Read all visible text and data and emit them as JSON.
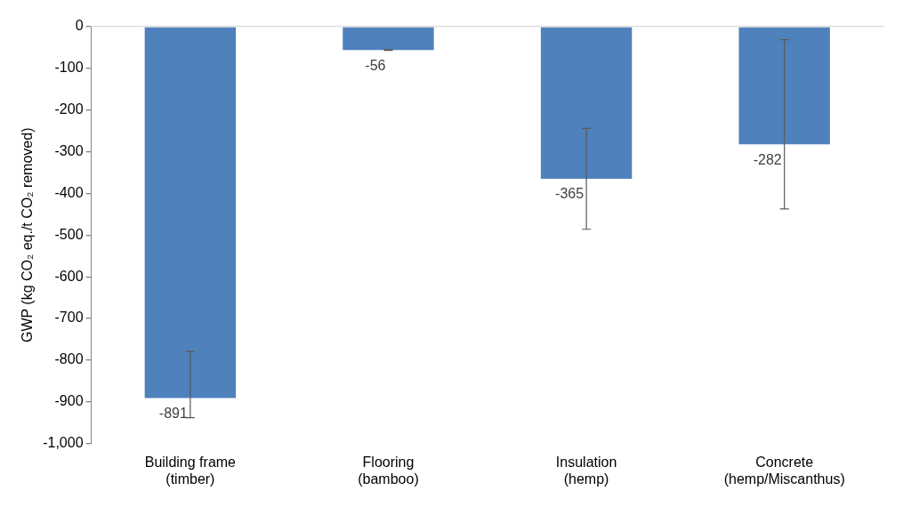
{
  "chart_data": {
    "type": "bar",
    "ylabel": "GWP (kg CO₂ eq./t CO₂ removed)",
    "categories": [
      "Building frame\n(timber)",
      "Flooring\n(bamboo)",
      "Insulation\n(hemp)",
      "Concrete\n(hemp/Miscanthus)"
    ],
    "values": [
      -891,
      -56,
      -365,
      -282
    ],
    "errors": [
      [
        -938,
        -779
      ],
      [
        -57,
        -55
      ],
      [
        -486,
        -244
      ],
      [
        -437,
        -31
      ]
    ],
    "color": "#4f81bd",
    "ylim": [
      -1000,
      0
    ],
    "yticks": [
      {
        "value": -1000,
        "label": "-1,000"
      },
      -900,
      -800,
      -700,
      -600,
      -500,
      -400,
      -300,
      -200,
      -100,
      0
    ],
    "data_labels": true,
    "grid": false,
    "legend": false
  }
}
